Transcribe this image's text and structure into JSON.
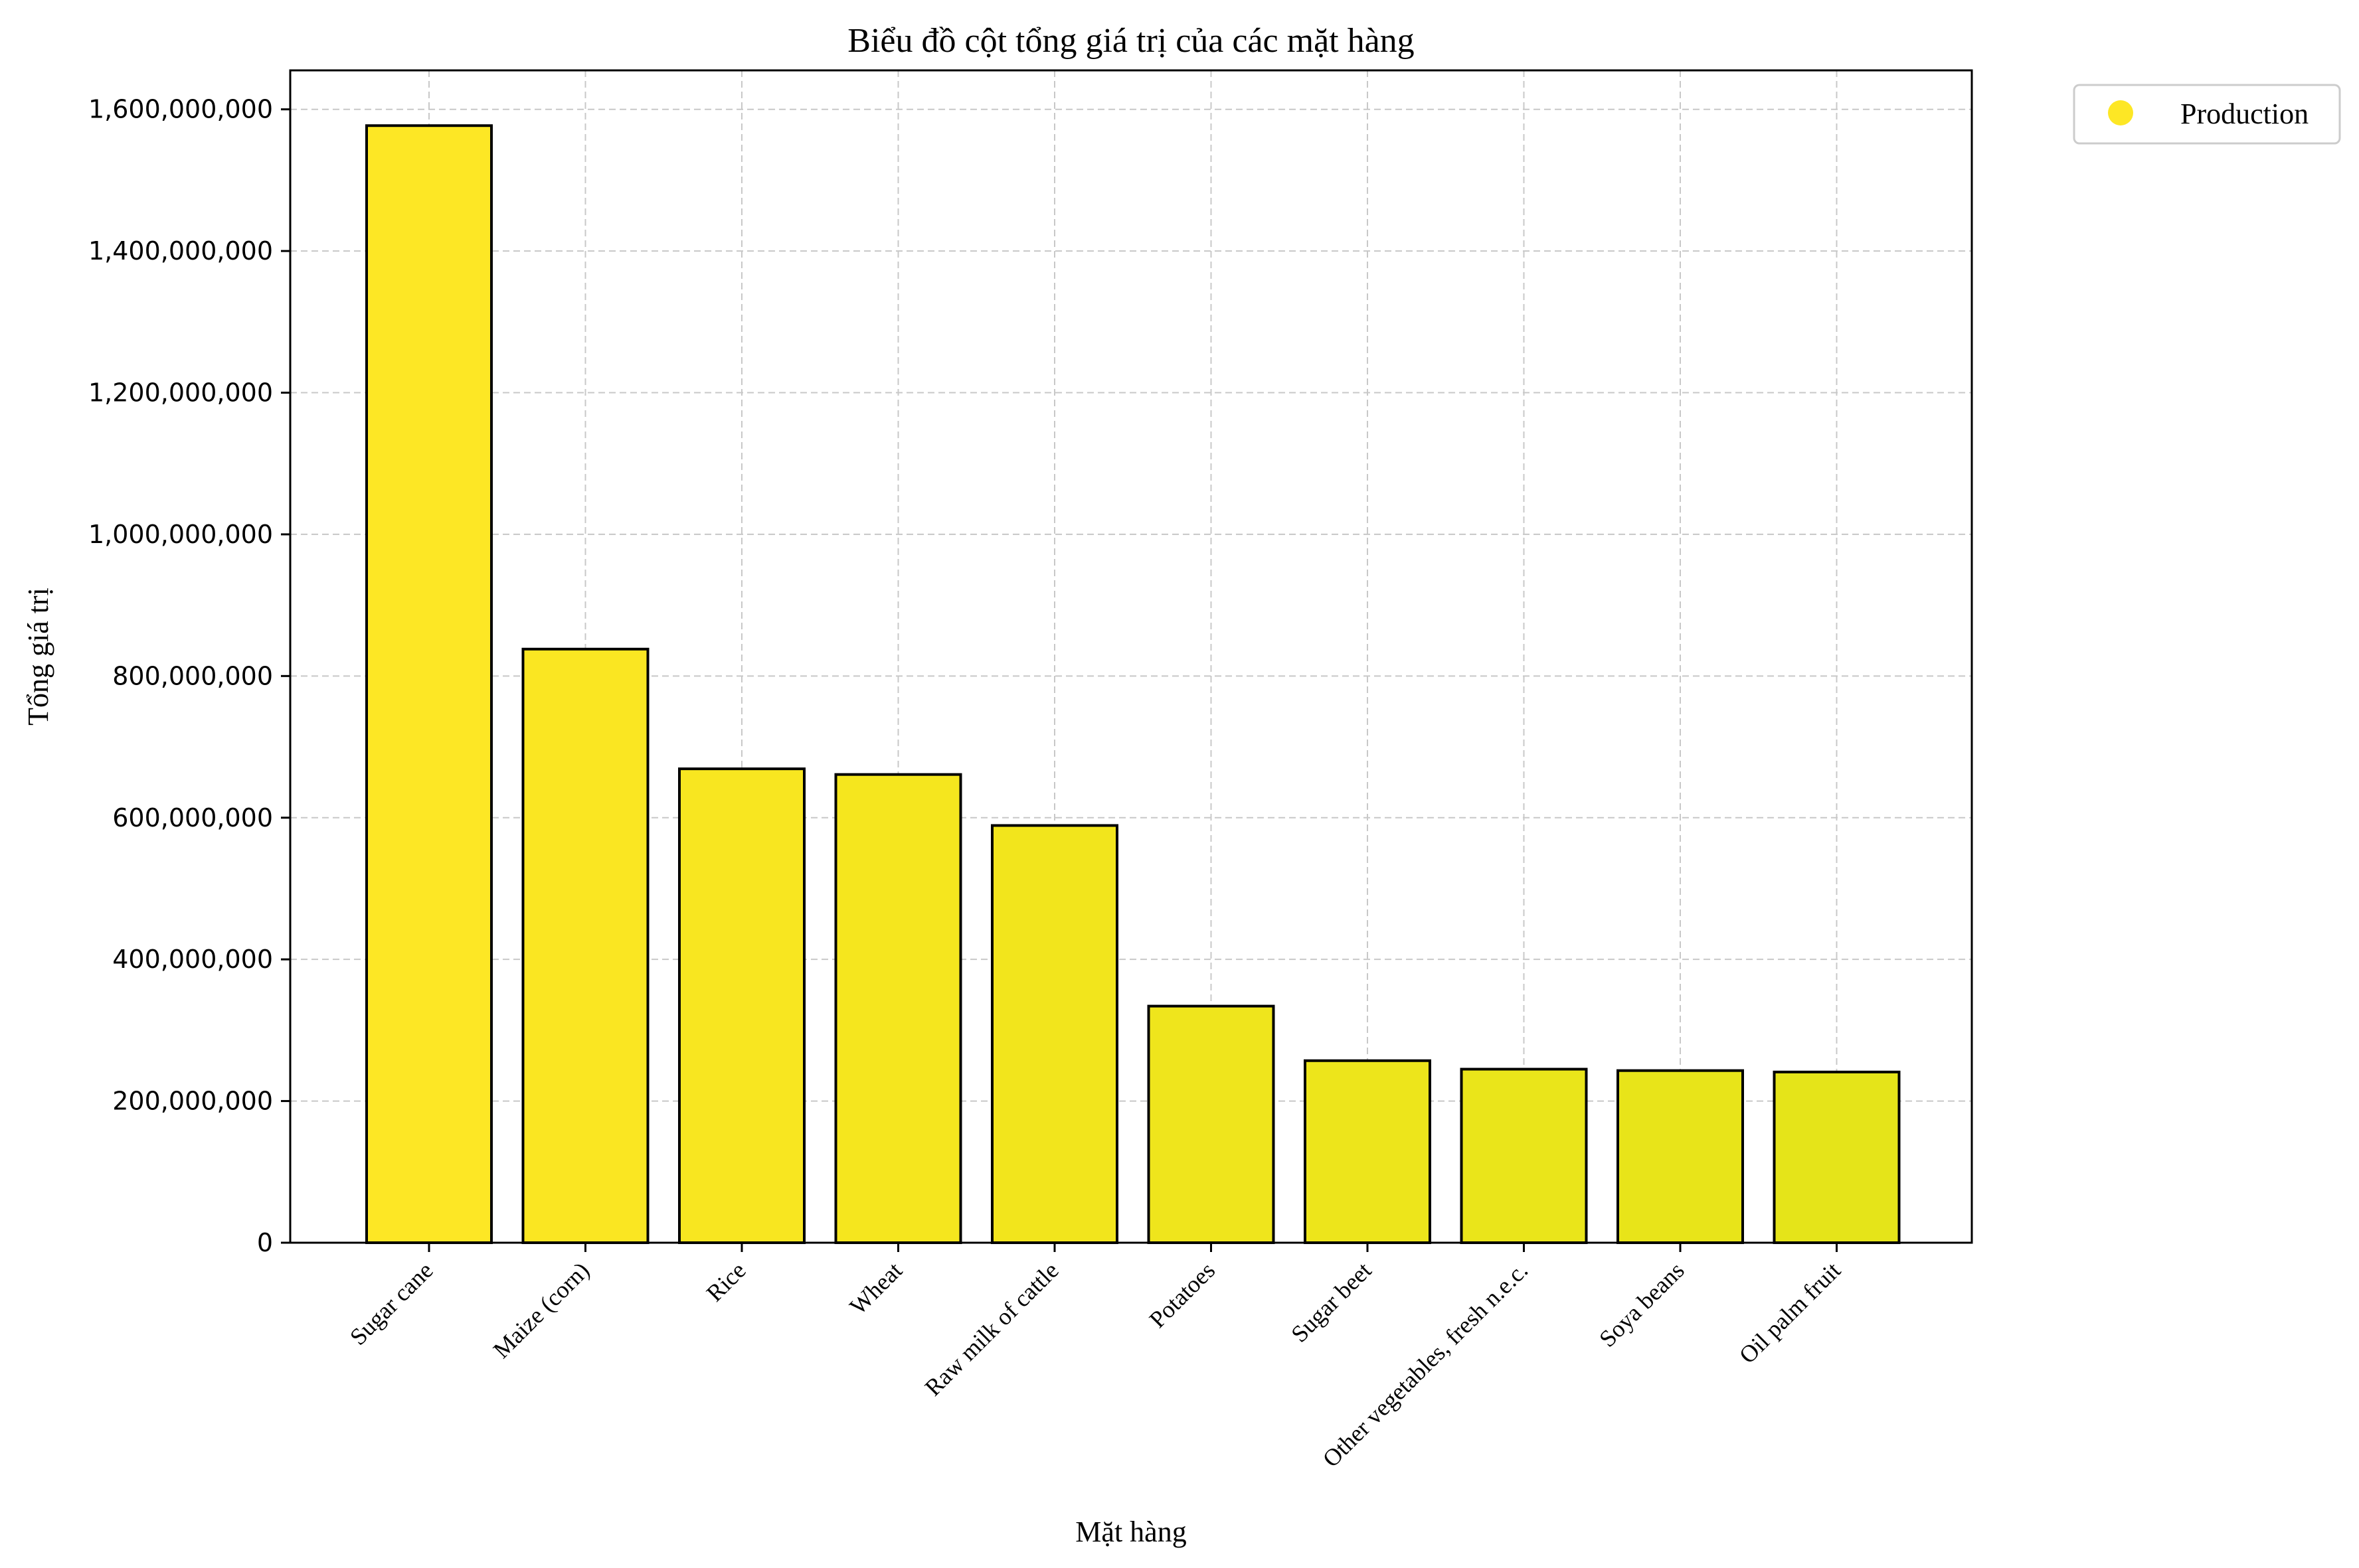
{
  "chart_data": {
    "type": "bar",
    "title": "Biểu đồ cột tổng giá trị của các mặt hàng",
    "xlabel": "Mặt hàng",
    "ylabel": "Tổng giá trị",
    "categories": [
      "Sugar cane",
      "Maize (corn)",
      "Rice",
      "Wheat",
      "Raw milk of cattle",
      "Potatoes",
      "Sugar beet",
      "Other vegetables, fresh n.e.c.",
      "Soya beans",
      "Oil palm fruit"
    ],
    "series": [
      {
        "name": "Production",
        "values": [
          1577000000,
          838000000,
          669000000,
          661000000,
          589000000,
          334000000,
          257000000,
          245000000,
          243000000,
          241000000
        ]
      }
    ],
    "bar_colors": [
      "#fde725",
      "#fae622",
      "#f8e620",
      "#f5e61e",
      "#f2e51c",
      "#efe51c",
      "#ede51b",
      "#eae51a",
      "#e8e419",
      "#e5e419"
    ],
    "legend_color": "#fde725",
    "ylim": [
      0,
      1655000000
    ],
    "yticks": [
      0,
      200000000,
      400000000,
      600000000,
      800000000,
      1000000000,
      1200000000,
      1400000000,
      1600000000
    ],
    "ytick_labels": [
      "0",
      "200,000,000",
      "400,000,000",
      "600,000,000",
      "800,000,000",
      "1,000,000,000",
      "1,200,000,000",
      "1,400,000,000",
      "1,600,000,000"
    ],
    "grid": true,
    "legend_position": "outside-top-right"
  }
}
